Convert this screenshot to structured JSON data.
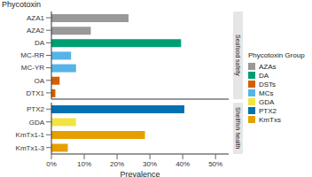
{
  "chart_data": [
    {
      "type": "bar",
      "orientation": "horizontal",
      "stacked": true,
      "title": "Seafood safety",
      "ylabel": "Phycotoxin",
      "legend": "right",
      "legend_title": "Phycotoxin Group",
      "categories": [
        "AZA1",
        "AZA2",
        "DA",
        "MC-RR",
        "MC-YR",
        "OA",
        "DTX1"
      ],
      "series": [
        {
          "name": "AZAs",
          "color": "#999999",
          "values": [
            23.5,
            12,
            null,
            null,
            null,
            null,
            null
          ]
        },
        {
          "name": "DA",
          "color": "#009E73",
          "values": [
            null,
            null,
            39.5,
            null,
            null,
            null,
            null
          ]
        },
        {
          "name": "DSTs",
          "color": "#D55E00",
          "values": [
            null,
            null,
            null,
            null,
            null,
            2.5,
            1.2
          ]
        },
        {
          "name": "MCs",
          "color": "#56B4E9",
          "values": [
            null,
            null,
            null,
            6,
            7.5,
            null,
            null
          ]
        }
      ],
      "xlim": [
        0,
        54
      ]
    },
    {
      "type": "bar",
      "orientation": "horizontal",
      "stacked": true,
      "title": "Shellfish health",
      "xlabel": "Prevalence",
      "categories": [
        "PTX2",
        "GDA",
        "KmTx1-1",
        "KmTx1-3"
      ],
      "series": [
        {
          "name": "GDA",
          "color": "#F0E442",
          "values": [
            null,
            7.5,
            null,
            null
          ]
        },
        {
          "name": "PTX2",
          "color": "#0072B2",
          "values": [
            40.5,
            null,
            null,
            null
          ]
        },
        {
          "name": "KmTxs",
          "color": "#E69F00",
          "values": [
            null,
            null,
            28.5,
            5
          ]
        }
      ],
      "xlim": [
        0,
        54
      ],
      "xticks": [
        {
          "value": 0,
          "label": "0%"
        },
        {
          "value": 10,
          "label": "10%"
        },
        {
          "value": 20,
          "label": "20%"
        },
        {
          "value": 30,
          "label": "30%"
        },
        {
          "value": 40,
          "label": "40%"
        },
        {
          "value": 50,
          "label": "50%"
        }
      ]
    }
  ]
}
